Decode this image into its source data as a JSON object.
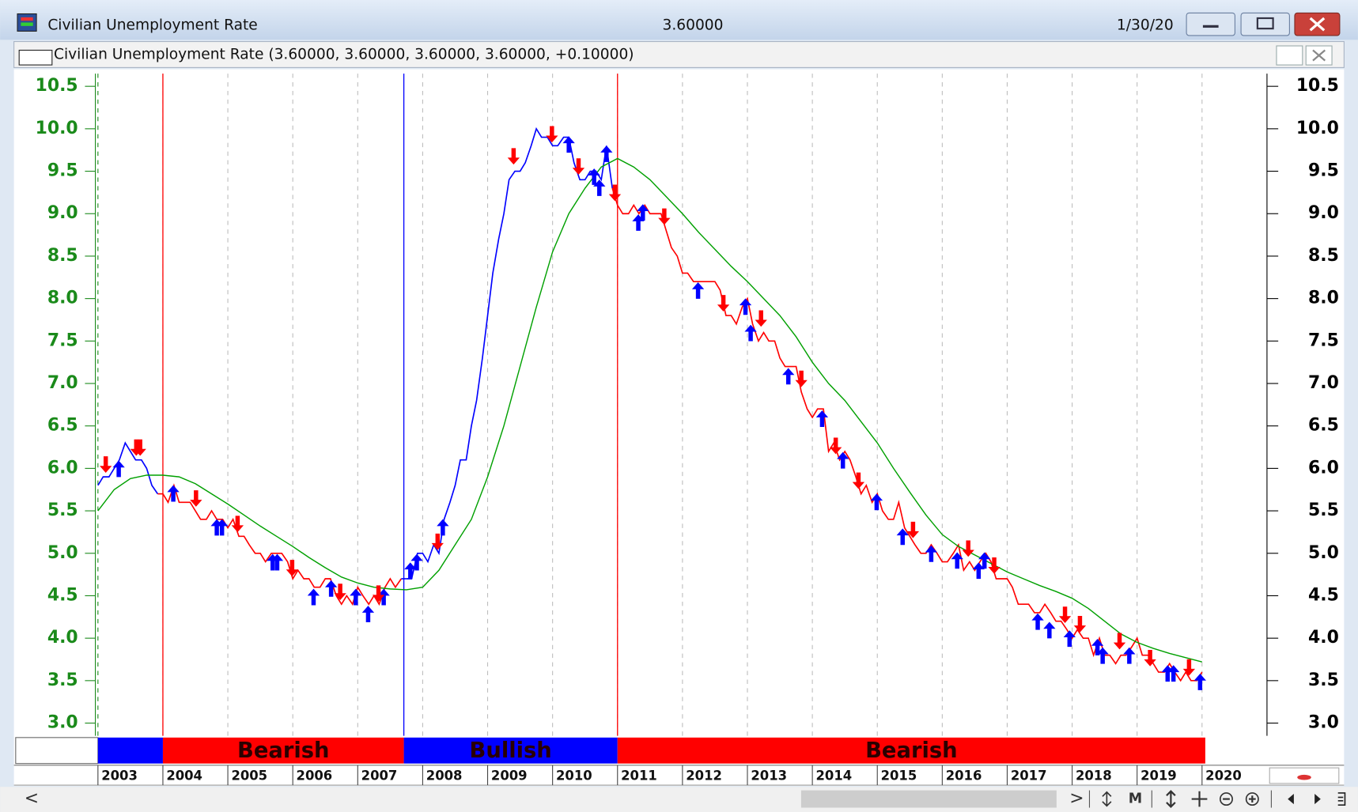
{
  "window": {
    "title": "Civilian Unemployment Rate",
    "last_value": "3.60000",
    "date": "1/30/20",
    "legend": "Civilian Unemployment Rate (3.60000, 3.60000, 3.60000, 3.60000, +0.10000)",
    "scroll_left": "<",
    "scroll_right": ">",
    "toolbar_label": "M"
  },
  "chart_data": {
    "type": "line",
    "xlim": [
      2003,
      2021
    ],
    "ylim": [
      2.85,
      10.65
    ],
    "xticks": [
      2003,
      2004,
      2005,
      2006,
      2007,
      2008,
      2009,
      2010,
      2011,
      2012,
      2013,
      2014,
      2015,
      2016,
      2017,
      2018,
      2019,
      2020
    ],
    "yticks": [
      {
        "value": 3,
        "label": "3.0"
      },
      3.5,
      {
        "value": 4,
        "label": "4.0"
      },
      4.5,
      {
        "value": 5,
        "label": "5.0"
      },
      5.5,
      {
        "value": 6,
        "label": "6.0"
      },
      6.5,
      {
        "value": 7,
        "label": "7.0"
      },
      7.5,
      {
        "value": 8,
        "label": "8.0"
      },
      8.5,
      {
        "value": 9,
        "label": "9.0"
      },
      9.5,
      {
        "value": 10,
        "label": "10.0"
      },
      10.5
    ],
    "grid": true,
    "signals": [
      {
        "start": 2003,
        "end": 2004,
        "color": "#0000ff"
      },
      {
        "start": 2004,
        "end": 2007.71,
        "color": "#ff0000",
        "label": "Bearish"
      },
      {
        "start": 2007.71,
        "end": 2011,
        "color": "#0000ff",
        "label": "Bullish"
      },
      {
        "start": 2011,
        "end": 2020.05,
        "color": "#ff0000",
        "label": "Bearish"
      }
    ],
    "series": [
      {
        "x": [
          2003,
          2003.08,
          2003.17,
          2003.25,
          2003.33,
          2003.42,
          2003.5,
          2003.58,
          2003.67,
          2003.75,
          2003.83,
          2003.92,
          2004,
          2004.08,
          2004.17,
          2004.25,
          2004.33,
          2004.42,
          2004.5,
          2004.58,
          2004.67,
          2004.75,
          2004.83,
          2004.92,
          2005,
          2005.08,
          2005.17,
          2005.25,
          2005.33,
          2005.42,
          2005.5,
          2005.58,
          2005.67,
          2005.75,
          2005.83,
          2005.92,
          2006,
          2006.08,
          2006.17,
          2006.25,
          2006.33,
          2006.42,
          2006.5,
          2006.58,
          2006.67,
          2006.75,
          2006.83,
          2006.92,
          2007,
          2007.08,
          2007.17,
          2007.25,
          2007.33,
          2007.42,
          2007.5,
          2007.58,
          2007.67,
          2007.75,
          2007.83,
          2007.92,
          2008,
          2008.08,
          2008.17,
          2008.25,
          2008.33,
          2008.42,
          2008.5,
          2008.58,
          2008.67,
          2008.75,
          2008.83,
          2008.92,
          2009,
          2009.08,
          2009.17,
          2009.25,
          2009.33,
          2009.42,
          2009.5,
          2009.58,
          2009.67,
          2009.75,
          2009.83,
          2009.92,
          2010,
          2010.08,
          2010.17,
          2010.25,
          2010.33,
          2010.42,
          2010.5,
          2010.58,
          2010.67,
          2010.75,
          2010.83,
          2010.92,
          2011,
          2011.08,
          2011.17,
          2011.25,
          2011.33,
          2011.42,
          2011.5,
          2011.58,
          2011.67,
          2011.75,
          2011.83,
          2011.92,
          2012,
          2012.08,
          2012.17,
          2012.25,
          2012.33,
          2012.42,
          2012.5,
          2012.58,
          2012.67,
          2012.75,
          2012.83,
          2012.92,
          2013,
          2013.08,
          2013.17,
          2013.25,
          2013.33,
          2013.42,
          2013.5,
          2013.58,
          2013.67,
          2013.75,
          2013.83,
          2013.92,
          2014,
          2014.08,
          2014.17,
          2014.25,
          2014.33,
          2014.42,
          2014.5,
          2014.58,
          2014.67,
          2014.75,
          2014.83,
          2014.92,
          2015,
          2015.08,
          2015.17,
          2015.25,
          2015.33,
          2015.42,
          2015.5,
          2015.58,
          2015.67,
          2015.75,
          2015.83,
          2015.92,
          2016,
          2016.08,
          2016.17,
          2016.25,
          2016.33,
          2016.42,
          2016.5,
          2016.58,
          2016.67,
          2016.75,
          2016.83,
          2016.92,
          2017,
          2017.08,
          2017.17,
          2017.25,
          2017.33,
          2017.42,
          2017.5,
          2017.58,
          2017.67,
          2017.75,
          2017.83,
          2017.92,
          2018,
          2018.08,
          2018.17,
          2018.25,
          2018.33,
          2018.42,
          2018.5,
          2018.58,
          2018.67,
          2018.75,
          2018.83,
          2018.92,
          2019,
          2019.08,
          2019.17,
          2019.25,
          2019.33,
          2019.42,
          2019.5,
          2019.58,
          2019.67,
          2019.75,
          2019.83,
          2019.92,
          2020
        ],
        "values": [
          5.8,
          5.9,
          5.9,
          6.0,
          6.1,
          6.3,
          6.2,
          6.1,
          6.1,
          6.0,
          5.8,
          5.7,
          5.7,
          5.6,
          5.8,
          5.6,
          5.6,
          5.6,
          5.5,
          5.4,
          5.4,
          5.5,
          5.4,
          5.4,
          5.3,
          5.4,
          5.2,
          5.2,
          5.1,
          5.0,
          5.0,
          4.9,
          5.0,
          5.0,
          5.0,
          4.9,
          4.7,
          4.8,
          4.7,
          4.7,
          4.6,
          4.6,
          4.7,
          4.7,
          4.5,
          4.4,
          4.5,
          4.4,
          4.6,
          4.5,
          4.4,
          4.5,
          4.4,
          4.6,
          4.7,
          4.6,
          4.7,
          4.7,
          4.7,
          5.0,
          5.0,
          4.9,
          5.1,
          5.0,
          5.4,
          5.6,
          5.8,
          6.1,
          6.1,
          6.5,
          6.8,
          7.3,
          7.8,
          8.3,
          8.7,
          9.0,
          9.4,
          9.5,
          9.5,
          9.6,
          9.8,
          10.0,
          9.9,
          9.9,
          9.8,
          9.8,
          9.9,
          9.9,
          9.6,
          9.4,
          9.4,
          9.5,
          9.5,
          9.4,
          9.8,
          9.3,
          9.1,
          9.0,
          9.0,
          9.1,
          9.0,
          9.1,
          9.0,
          9.0,
          9.0,
          8.8,
          8.6,
          8.5,
          8.3,
          8.3,
          8.2,
          8.2,
          8.2,
          8.2,
          8.2,
          8.1,
          7.8,
          7.8,
          7.7,
          7.9,
          8.0,
          7.7,
          7.5,
          7.6,
          7.5,
          7.5,
          7.3,
          7.2,
          7.2,
          7.2,
          6.9,
          6.7,
          6.6,
          6.7,
          6.7,
          6.2,
          6.3,
          6.1,
          6.2,
          6.1,
          5.9,
          5.7,
          5.8,
          5.6,
          5.7,
          5.5,
          5.4,
          5.4,
          5.6,
          5.3,
          5.2,
          5.1,
          5.0,
          5.0,
          5.1,
          5.0,
          4.9,
          4.9,
          5.0,
          5.1,
          4.8,
          4.9,
          4.8,
          4.9,
          5.0,
          4.9,
          4.7,
          4.7,
          4.7,
          4.6,
          4.4,
          4.4,
          4.4,
          4.3,
          4.3,
          4.4,
          4.3,
          4.2,
          4.2,
          4.1,
          4.0,
          4.1,
          4.0,
          4.0,
          3.8,
          4.0,
          3.8,
          3.8,
          3.7,
          3.8,
          3.8,
          3.9,
          4.0,
          3.8,
          3.8,
          3.7,
          3.6,
          3.6,
          3.7,
          3.6,
          3.5,
          3.6,
          3.5,
          3.5,
          3.6
        ]
      },
      {
        "color": "#00a000",
        "x": [
          2003,
          2003.25,
          2003.5,
          2003.75,
          2004,
          2004.25,
          2004.5,
          2004.75,
          2005,
          2005.25,
          2005.5,
          2005.75,
          2006,
          2006.25,
          2006.5,
          2006.75,
          2007,
          2007.25,
          2007.5,
          2007.75,
          2008,
          2008.25,
          2008.5,
          2008.75,
          2009,
          2009.25,
          2009.5,
          2009.75,
          2010,
          2010.25,
          2010.5,
          2010.75,
          2011,
          2011.25,
          2011.5,
          2011.75,
          2012,
          2012.25,
          2012.5,
          2012.75,
          2013,
          2013.25,
          2013.5,
          2013.75,
          2014,
          2014.25,
          2014.5,
          2014.75,
          2015,
          2015.25,
          2015.5,
          2015.75,
          2016,
          2016.25,
          2016.5,
          2016.75,
          2017,
          2017.25,
          2017.5,
          2017.75,
          2018,
          2018.25,
          2018.5,
          2018.75,
          2019,
          2019.25,
          2019.5,
          2019.75,
          2020
        ],
        "values": [
          5.5,
          5.75,
          5.88,
          5.92,
          5.92,
          5.9,
          5.82,
          5.7,
          5.58,
          5.45,
          5.32,
          5.2,
          5.08,
          4.95,
          4.83,
          4.72,
          4.65,
          4.6,
          4.58,
          4.57,
          4.6,
          4.8,
          5.1,
          5.4,
          5.9,
          6.5,
          7.2,
          7.9,
          8.55,
          9.0,
          9.3,
          9.55,
          9.65,
          9.55,
          9.4,
          9.2,
          9.0,
          8.78,
          8.58,
          8.38,
          8.2,
          8.0,
          7.8,
          7.55,
          7.25,
          7.0,
          6.8,
          6.55,
          6.3,
          6.0,
          5.72,
          5.45,
          5.22,
          5.08,
          4.98,
          4.88,
          4.78,
          4.7,
          4.62,
          4.55,
          4.47,
          4.35,
          4.2,
          4.05,
          3.95,
          3.88,
          3.82,
          3.77,
          3.72
        ]
      }
    ],
    "up_signals": {
      "color": "#0000ff",
      "x": [
        2003.32,
        2004.16,
        2004.83,
        2004.91,
        2005.69,
        2005.76,
        2006.32,
        2006.59,
        2006.97,
        2007.16,
        2007.4,
        2007.81,
        2007.91,
        2008.31,
        2010.25,
        2010.64,
        2010.72,
        2010.83,
        2011.32,
        2011.39,
        2012.24,
        2012.97,
        2013.05,
        2013.63,
        2014.15,
        2014.47,
        2014.99,
        2015.39,
        2015.83,
        2016.23,
        2016.56,
        2016.65,
        2017.47,
        2017.65,
        2017.96,
        2018.39,
        2018.47,
        2018.88,
        2019.47,
        2019.56,
        2019.97
      ],
      "values": [
        5.99,
        5.7,
        5.3,
        5.3,
        4.89,
        4.89,
        4.48,
        4.58,
        4.48,
        4.28,
        4.48,
        4.79,
        4.89,
        5.3,
        9.81,
        9.43,
        9.3,
        9.7,
        8.89,
        9.01,
        8.09,
        7.9,
        7.59,
        7.08,
        6.58,
        6.09,
        5.6,
        5.19,
        4.99,
        4.91,
        4.79,
        4.91,
        4.19,
        4.09,
        3.99,
        3.89,
        3.79,
        3.79,
        3.58,
        3.58,
        3.48
      ]
    },
    "down_signals": {
      "color": "#ff0000",
      "x": [
        2003.12,
        2003.59,
        2003.65,
        2004.51,
        2005.15,
        2005.99,
        2006.73,
        2007.32,
        2008.23,
        2009.4,
        2009.99,
        2010.4,
        2010.96,
        2011.72,
        2012.63,
        2013.21,
        2013.83,
        2014.36,
        2014.71,
        2015.55,
        2016.4,
        2016.8,
        2017.89,
        2018.12,
        2018.73,
        2019.2,
        2019.8
      ],
      "values": [
        6.05,
        6.25,
        6.25,
        5.65,
        5.35,
        4.83,
        4.55,
        4.53,
        5.14,
        9.68,
        9.94,
        9.56,
        9.25,
        8.97,
        7.95,
        7.77,
        7.06,
        6.27,
        5.86,
        5.28,
        5.06,
        4.86,
        4.28,
        4.17,
        3.97,
        3.77,
        3.66
      ]
    }
  }
}
